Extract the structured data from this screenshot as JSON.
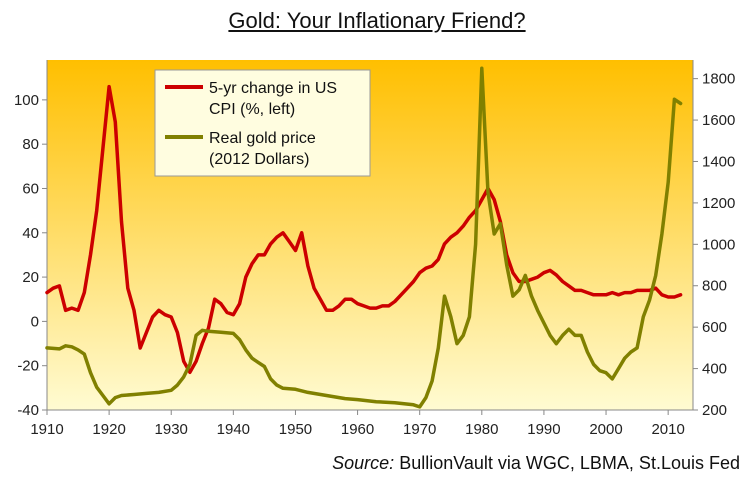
{
  "chart_data": {
    "type": "line",
    "title": "Gold: Your Inflationary  Friend?",
    "source_label": "Source:",
    "source_text": "BullionVault via WGC, LBMA, St.Louis Fed",
    "background_gradient": [
      "#ffbf00",
      "#fffbd2"
    ],
    "x_ticks": [
      1910,
      1920,
      1930,
      1940,
      1950,
      1960,
      1970,
      1980,
      1990,
      2000,
      2010
    ],
    "xlim": [
      1910,
      2014
    ],
    "y_left": {
      "ticks": [
        -40,
        -20,
        0,
        20,
        40,
        60,
        80,
        100
      ],
      "range": [
        -40,
        118
      ]
    },
    "y_right": {
      "ticks": [
        200,
        400,
        600,
        800,
        1000,
        1200,
        1400,
        1600,
        1800
      ],
      "range": [
        200,
        1890
      ]
    },
    "legend_position": "top-left",
    "series": [
      {
        "name": "5-yr change in US CPI (%, left)",
        "legend_lines": [
          "5-yr change in US",
          "CPI (%, left)"
        ],
        "color": "#cc0000",
        "axis": "left",
        "points": [
          [
            1910,
            13
          ],
          [
            1911,
            15
          ],
          [
            1912,
            16
          ],
          [
            1913,
            5
          ],
          [
            1914,
            6
          ],
          [
            1915,
            5
          ],
          [
            1916,
            13
          ],
          [
            1917,
            30
          ],
          [
            1918,
            50
          ],
          [
            1919,
            78
          ],
          [
            1920,
            106
          ],
          [
            1921,
            90
          ],
          [
            1922,
            45
          ],
          [
            1923,
            15
          ],
          [
            1924,
            5
          ],
          [
            1925,
            -12
          ],
          [
            1926,
            -5
          ],
          [
            1927,
            2
          ],
          [
            1928,
            5
          ],
          [
            1929,
            3
          ],
          [
            1930,
            2
          ],
          [
            1931,
            -5
          ],
          [
            1932,
            -18
          ],
          [
            1933,
            -23
          ],
          [
            1934,
            -18
          ],
          [
            1935,
            -10
          ],
          [
            1936,
            -3
          ],
          [
            1937,
            10
          ],
          [
            1938,
            8
          ],
          [
            1939,
            4
          ],
          [
            1940,
            3
          ],
          [
            1941,
            8
          ],
          [
            1942,
            20
          ],
          [
            1943,
            26
          ],
          [
            1944,
            30
          ],
          [
            1945,
            30
          ],
          [
            1946,
            35
          ],
          [
            1947,
            38
          ],
          [
            1948,
            40
          ],
          [
            1949,
            36
          ],
          [
            1950,
            32
          ],
          [
            1951,
            40
          ],
          [
            1952,
            25
          ],
          [
            1953,
            15
          ],
          [
            1954,
            10
          ],
          [
            1955,
            5
          ],
          [
            1956,
            5
          ],
          [
            1957,
            7
          ],
          [
            1958,
            10
          ],
          [
            1959,
            10
          ],
          [
            1960,
            8
          ],
          [
            1961,
            7
          ],
          [
            1962,
            6
          ],
          [
            1963,
            6
          ],
          [
            1964,
            7
          ],
          [
            1965,
            7
          ],
          [
            1966,
            9
          ],
          [
            1967,
            12
          ],
          [
            1968,
            15
          ],
          [
            1969,
            18
          ],
          [
            1970,
            22
          ],
          [
            1971,
            24
          ],
          [
            1972,
            25
          ],
          [
            1973,
            28
          ],
          [
            1974,
            35
          ],
          [
            1975,
            38
          ],
          [
            1976,
            40
          ],
          [
            1977,
            43
          ],
          [
            1978,
            47
          ],
          [
            1979,
            50
          ],
          [
            1980,
            55
          ],
          [
            1981,
            60
          ],
          [
            1982,
            55
          ],
          [
            1983,
            45
          ],
          [
            1984,
            30
          ],
          [
            1985,
            22
          ],
          [
            1986,
            18
          ],
          [
            1987,
            18
          ],
          [
            1988,
            19
          ],
          [
            1989,
            20
          ],
          [
            1990,
            22
          ],
          [
            1991,
            23
          ],
          [
            1992,
            21
          ],
          [
            1993,
            18
          ],
          [
            1994,
            16
          ],
          [
            1995,
            14
          ],
          [
            1996,
            14
          ],
          [
            1997,
            13
          ],
          [
            1998,
            12
          ],
          [
            1999,
            12
          ],
          [
            2000,
            12
          ],
          [
            2001,
            13
          ],
          [
            2002,
            12
          ],
          [
            2003,
            13
          ],
          [
            2004,
            13
          ],
          [
            2005,
            14
          ],
          [
            2006,
            14
          ],
          [
            2007,
            14
          ],
          [
            2008,
            15
          ],
          [
            2009,
            12
          ],
          [
            2010,
            11
          ],
          [
            2011,
            11
          ],
          [
            2012,
            12
          ]
        ]
      },
      {
        "name": "Real gold price (2012 Dollars)",
        "legend_lines": [
          "Real gold price",
          "(2012 Dollars)"
        ],
        "color": "#808000",
        "axis": "right",
        "points": [
          [
            1910,
            500
          ],
          [
            1912,
            495
          ],
          [
            1913,
            510
          ],
          [
            1914,
            505
          ],
          [
            1915,
            490
          ],
          [
            1916,
            470
          ],
          [
            1917,
            380
          ],
          [
            1918,
            310
          ],
          [
            1919,
            270
          ],
          [
            1920,
            230
          ],
          [
            1921,
            260
          ],
          [
            1922,
            270
          ],
          [
            1924,
            275
          ],
          [
            1926,
            280
          ],
          [
            1928,
            285
          ],
          [
            1930,
            295
          ],
          [
            1931,
            320
          ],
          [
            1932,
            360
          ],
          [
            1933,
            420
          ],
          [
            1934,
            560
          ],
          [
            1935,
            585
          ],
          [
            1936,
            580
          ],
          [
            1938,
            575
          ],
          [
            1940,
            570
          ],
          [
            1941,
            540
          ],
          [
            1942,
            490
          ],
          [
            1943,
            450
          ],
          [
            1944,
            430
          ],
          [
            1945,
            410
          ],
          [
            1946,
            350
          ],
          [
            1947,
            320
          ],
          [
            1948,
            305
          ],
          [
            1950,
            300
          ],
          [
            1952,
            285
          ],
          [
            1955,
            270
          ],
          [
            1958,
            255
          ],
          [
            1960,
            250
          ],
          [
            1963,
            240
          ],
          [
            1966,
            235
          ],
          [
            1969,
            225
          ],
          [
            1970,
            215
          ],
          [
            1971,
            260
          ],
          [
            1972,
            340
          ],
          [
            1973,
            500
          ],
          [
            1974,
            750
          ],
          [
            1975,
            650
          ],
          [
            1976,
            520
          ],
          [
            1977,
            560
          ],
          [
            1978,
            650
          ],
          [
            1979,
            1000
          ],
          [
            1980,
            1850
          ],
          [
            1981,
            1250
          ],
          [
            1982,
            1050
          ],
          [
            1983,
            1100
          ],
          [
            1984,
            900
          ],
          [
            1985,
            750
          ],
          [
            1986,
            780
          ],
          [
            1987,
            850
          ],
          [
            1988,
            750
          ],
          [
            1989,
            680
          ],
          [
            1990,
            620
          ],
          [
            1991,
            560
          ],
          [
            1992,
            520
          ],
          [
            1993,
            560
          ],
          [
            1994,
            590
          ],
          [
            1995,
            560
          ],
          [
            1996,
            560
          ],
          [
            1997,
            480
          ],
          [
            1998,
            420
          ],
          [
            1999,
            390
          ],
          [
            2000,
            380
          ],
          [
            2001,
            350
          ],
          [
            2002,
            400
          ],
          [
            2003,
            450
          ],
          [
            2004,
            480
          ],
          [
            2005,
            500
          ],
          [
            2006,
            650
          ],
          [
            2007,
            730
          ],
          [
            2008,
            850
          ],
          [
            2009,
            1050
          ],
          [
            2010,
            1300
          ],
          [
            2011,
            1700
          ],
          [
            2012,
            1680
          ]
        ]
      }
    ]
  }
}
